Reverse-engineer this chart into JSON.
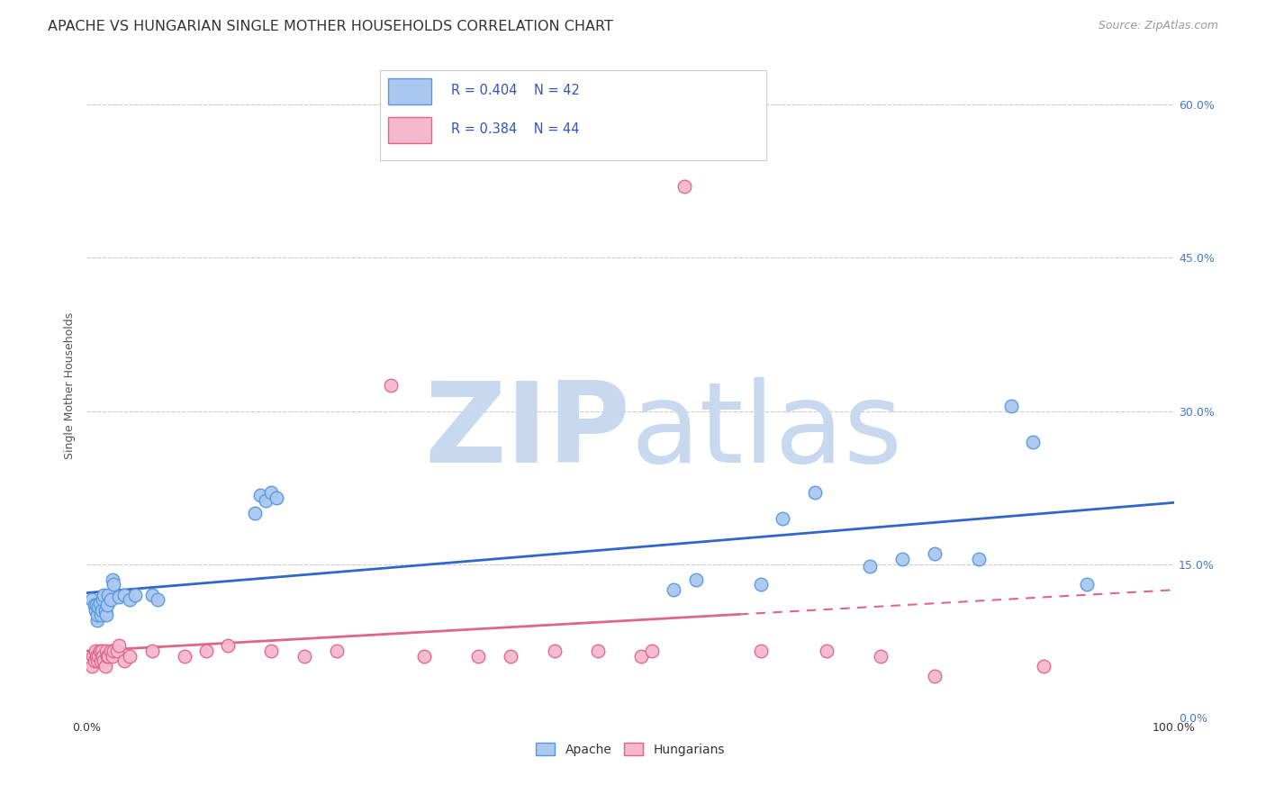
{
  "title": "APACHE VS HUNGARIAN SINGLE MOTHER HOUSEHOLDS CORRELATION CHART",
  "source": "Source: ZipAtlas.com",
  "ylabel": "Single Mother Households",
  "xlim": [
    0.0,
    1.0
  ],
  "ylim": [
    0.0,
    0.65
  ],
  "yticks": [
    0.0,
    0.15,
    0.3,
    0.45,
    0.6
  ],
  "xticks": [
    0.0,
    1.0
  ],
  "xtick_labels": [
    "0.0%",
    "100.0%"
  ],
  "apache_x": [
    0.005,
    0.007,
    0.008,
    0.009,
    0.01,
    0.01,
    0.011,
    0.012,
    0.013,
    0.014,
    0.015,
    0.016,
    0.017,
    0.018,
    0.019,
    0.02,
    0.022,
    0.024,
    0.025,
    0.03,
    0.035,
    0.04,
    0.045,
    0.06,
    0.065,
    0.155,
    0.16,
    0.165,
    0.17,
    0.175,
    0.54,
    0.56,
    0.62,
    0.64,
    0.67,
    0.72,
    0.75,
    0.78,
    0.82,
    0.85,
    0.87,
    0.92
  ],
  "apache_y": [
    0.115,
    0.11,
    0.105,
    0.11,
    0.095,
    0.1,
    0.108,
    0.112,
    0.1,
    0.105,
    0.115,
    0.12,
    0.105,
    0.1,
    0.11,
    0.12,
    0.115,
    0.135,
    0.13,
    0.118,
    0.12,
    0.115,
    0.12,
    0.12,
    0.115,
    0.2,
    0.218,
    0.212,
    0.22,
    0.215,
    0.125,
    0.135,
    0.13,
    0.195,
    0.22,
    0.148,
    0.155,
    0.16,
    0.155,
    0.305,
    0.27,
    0.13
  ],
  "hungarian_x": [
    0.005,
    0.006,
    0.007,
    0.008,
    0.009,
    0.01,
    0.011,
    0.012,
    0.013,
    0.014,
    0.015,
    0.016,
    0.017,
    0.018,
    0.019,
    0.02,
    0.022,
    0.024,
    0.025,
    0.028,
    0.03,
    0.035,
    0.04,
    0.06,
    0.09,
    0.11,
    0.13,
    0.17,
    0.2,
    0.23,
    0.28,
    0.31,
    0.36,
    0.39,
    0.43,
    0.47,
    0.51,
    0.52,
    0.55,
    0.62,
    0.68,
    0.73,
    0.78,
    0.88
  ],
  "hungarian_y": [
    0.05,
    0.06,
    0.055,
    0.065,
    0.06,
    0.055,
    0.06,
    0.065,
    0.055,
    0.065,
    0.06,
    0.055,
    0.05,
    0.065,
    0.06,
    0.06,
    0.065,
    0.06,
    0.065,
    0.065,
    0.07,
    0.055,
    0.06,
    0.065,
    0.06,
    0.065,
    0.07,
    0.065,
    0.06,
    0.065,
    0.325,
    0.06,
    0.06,
    0.06,
    0.065,
    0.065,
    0.06,
    0.065,
    0.52,
    0.065,
    0.065,
    0.06,
    0.04,
    0.05
  ],
  "apache_color": "#aac8f0",
  "apache_edge": "#5599dd",
  "hungarian_color": "#f5b8cc",
  "hungarian_edge": "#e06688",
  "apache_R": 0.404,
  "apache_N": 42,
  "hungarian_R": 0.384,
  "hungarian_N": 44,
  "legend_color": "#3355bb",
  "background_color": "#ffffff",
  "grid_color": "#cccccc",
  "watermark_zip": "ZIP",
  "watermark_atlas": "atlas",
  "watermark_color_zip": "#c8d8ee",
  "watermark_color_atlas": "#c8d8ee",
  "title_fontsize": 11.5,
  "axis_label_fontsize": 9,
  "tick_fontsize": 9,
  "source_fontsize": 9,
  "right_tick_color": "#4477cc"
}
